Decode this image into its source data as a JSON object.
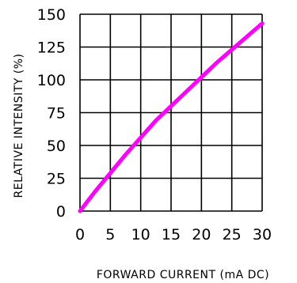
{
  "chart_data": {
    "type": "line",
    "title": "",
    "xlabel": "FORWARD CURRENT (mA DC)",
    "ylabel": "RELATIVE INTENSITY (%)",
    "xlim": [
      0,
      30
    ],
    "ylim": [
      0,
      150
    ],
    "x_ticks": [
      0,
      5,
      10,
      15,
      20,
      25,
      30
    ],
    "y_ticks": [
      0,
      25,
      50,
      75,
      100,
      125,
      150
    ],
    "grid": true,
    "line_color": "#ff00ff",
    "series": [
      {
        "x": [
          0,
          2.5,
          5,
          7.5,
          10,
          12.5,
          15,
          17.5,
          20,
          22.5,
          25,
          27.5,
          30
        ],
        "y": [
          0,
          15,
          29,
          43,
          56,
          69,
          80,
          91,
          102,
          113,
          123,
          133,
          143
        ]
      }
    ]
  }
}
